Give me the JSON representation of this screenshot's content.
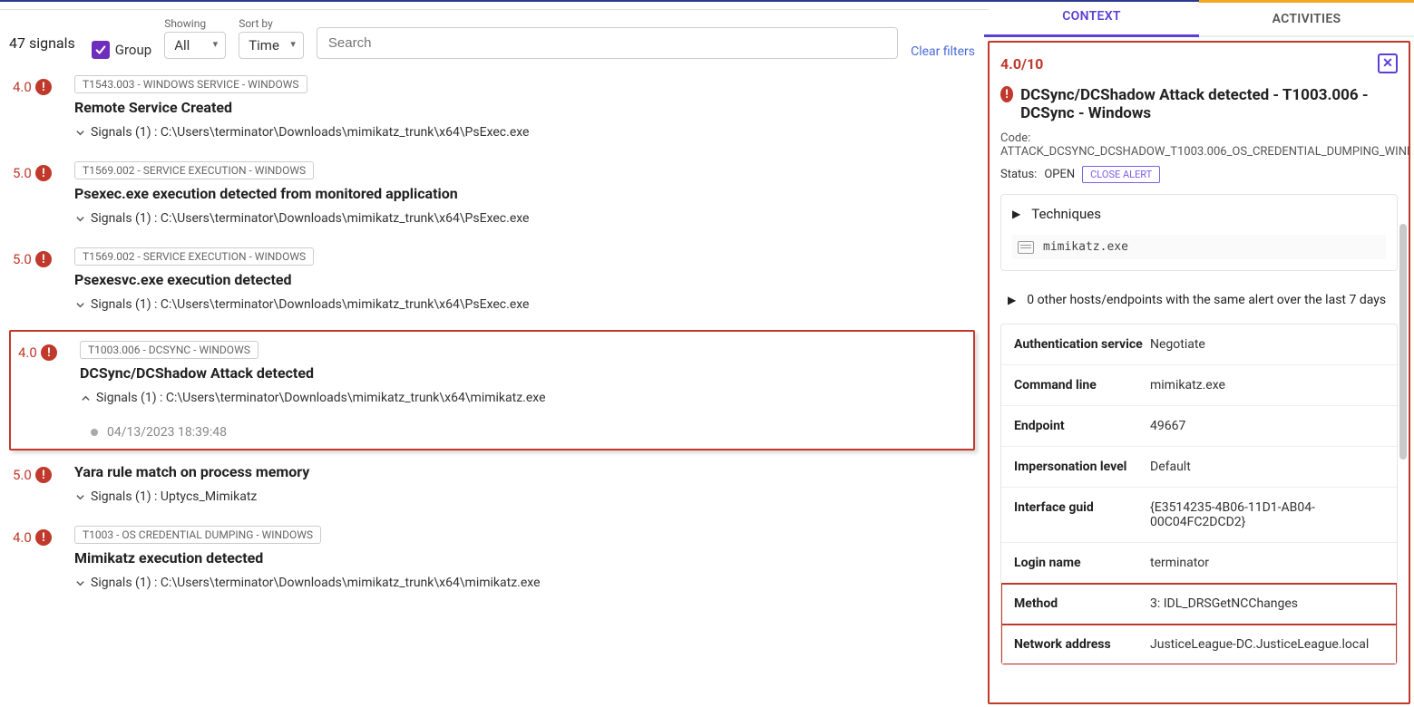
{
  "header": {
    "top_border_color": "#2b3a8f"
  },
  "toolbar": {
    "signals_count": "47 signals",
    "group_label": "Group",
    "group_checked": true,
    "showing_label": "Showing",
    "showing_value": "All",
    "sortby_label": "Sort by",
    "sortby_value": "Time",
    "search_placeholder": "Search",
    "clear_filters": "Clear filters"
  },
  "signals": [
    {
      "score": "4.0",
      "tag": "T1543.003 - WINDOWS SERVICE - WINDOWS",
      "title": "Remote Service Created",
      "expanded": false,
      "sub": "Signals (1) : C:\\Users\\terminator\\Downloads\\mimikatz_trunk\\x64\\PsExec.exe"
    },
    {
      "score": "5.0",
      "tag": "T1569.002 - SERVICE EXECUTION - WINDOWS",
      "title": "Psexec.exe execution detected from monitored application",
      "expanded": false,
      "sub": "Signals (1) : C:\\Users\\terminator\\Downloads\\mimikatz_trunk\\x64\\PsExec.exe"
    },
    {
      "score": "5.0",
      "tag": "T1569.002 - SERVICE EXECUTION - WINDOWS",
      "title": "Psexesvc.exe execution detected",
      "expanded": false,
      "sub": "Signals (1) : C:\\Users\\terminator\\Downloads\\mimikatz_trunk\\x64\\PsExec.exe"
    },
    {
      "score": "4.0",
      "tag": "T1003.006 - DCSYNC - WINDOWS",
      "title": "DCSync/DCShadow Attack detected",
      "expanded": true,
      "sub": "Signals (1) : C:\\Users\\terminator\\Downloads\\mimikatz_trunk\\x64\\mimikatz.exe",
      "timestamp": "04/13/2023 18:39:48",
      "selected": true
    },
    {
      "score": "5.0",
      "tag": "",
      "title": "Yara rule match on process memory",
      "expanded": false,
      "sub": "Signals (1) : Uptycs_Mimikatz"
    },
    {
      "score": "4.0",
      "tag": "T1003 - OS CREDENTIAL DUMPING - WINDOWS",
      "title": "Mimikatz execution detected",
      "expanded": false,
      "sub": "Signals (1) : C:\\Users\\terminator\\Downloads\\mimikatz_trunk\\x64\\mimikatz.exe"
    }
  ],
  "right": {
    "tab_context": "CONTEXT",
    "tab_activities": "ACTIVITIES",
    "score": "4.0/10",
    "title": "DCSync/DCShadow Attack detected - T1003.006 - DCSync - Windows",
    "code_label": "Code:",
    "code": "ATTACK_DCSYNC_DCSHADOW_T1003.006_OS_CREDENTIAL_DUMPING_WINDOWS",
    "status_label": "Status:",
    "status_value": "OPEN",
    "close_alert": "CLOSE ALERT",
    "techniques_label": "Techniques",
    "mimikatz": "mimikatz.exe",
    "hosts_note": "0 other hosts/endpoints with the same alert over the last 7 days",
    "kv": [
      {
        "k": "Authentication service",
        "v": "Negotiate"
      },
      {
        "k": "Command line",
        "v": "mimikatz.exe"
      },
      {
        "k": "Endpoint",
        "v": "49667"
      },
      {
        "k": "Impersonation level",
        "v": "Default"
      },
      {
        "k": "Interface guid",
        "v": "{E3514235-4B06-11D1-AB04-00C04FC2DCD2}"
      },
      {
        "k": "Login name",
        "v": "terminator"
      },
      {
        "k": "Method",
        "v": "3: IDL_DRSGetNCChanges",
        "hl": true
      },
      {
        "k": "Network address",
        "v": "JusticeLeague-DC.JusticeLeague.local",
        "hl": true
      }
    ]
  },
  "colors": {
    "danger": "#c0392b",
    "primary": "#5b3fd6",
    "checkbox": "#6f2dbd",
    "link": "#4a6bd6",
    "orange": "#f5a623"
  }
}
